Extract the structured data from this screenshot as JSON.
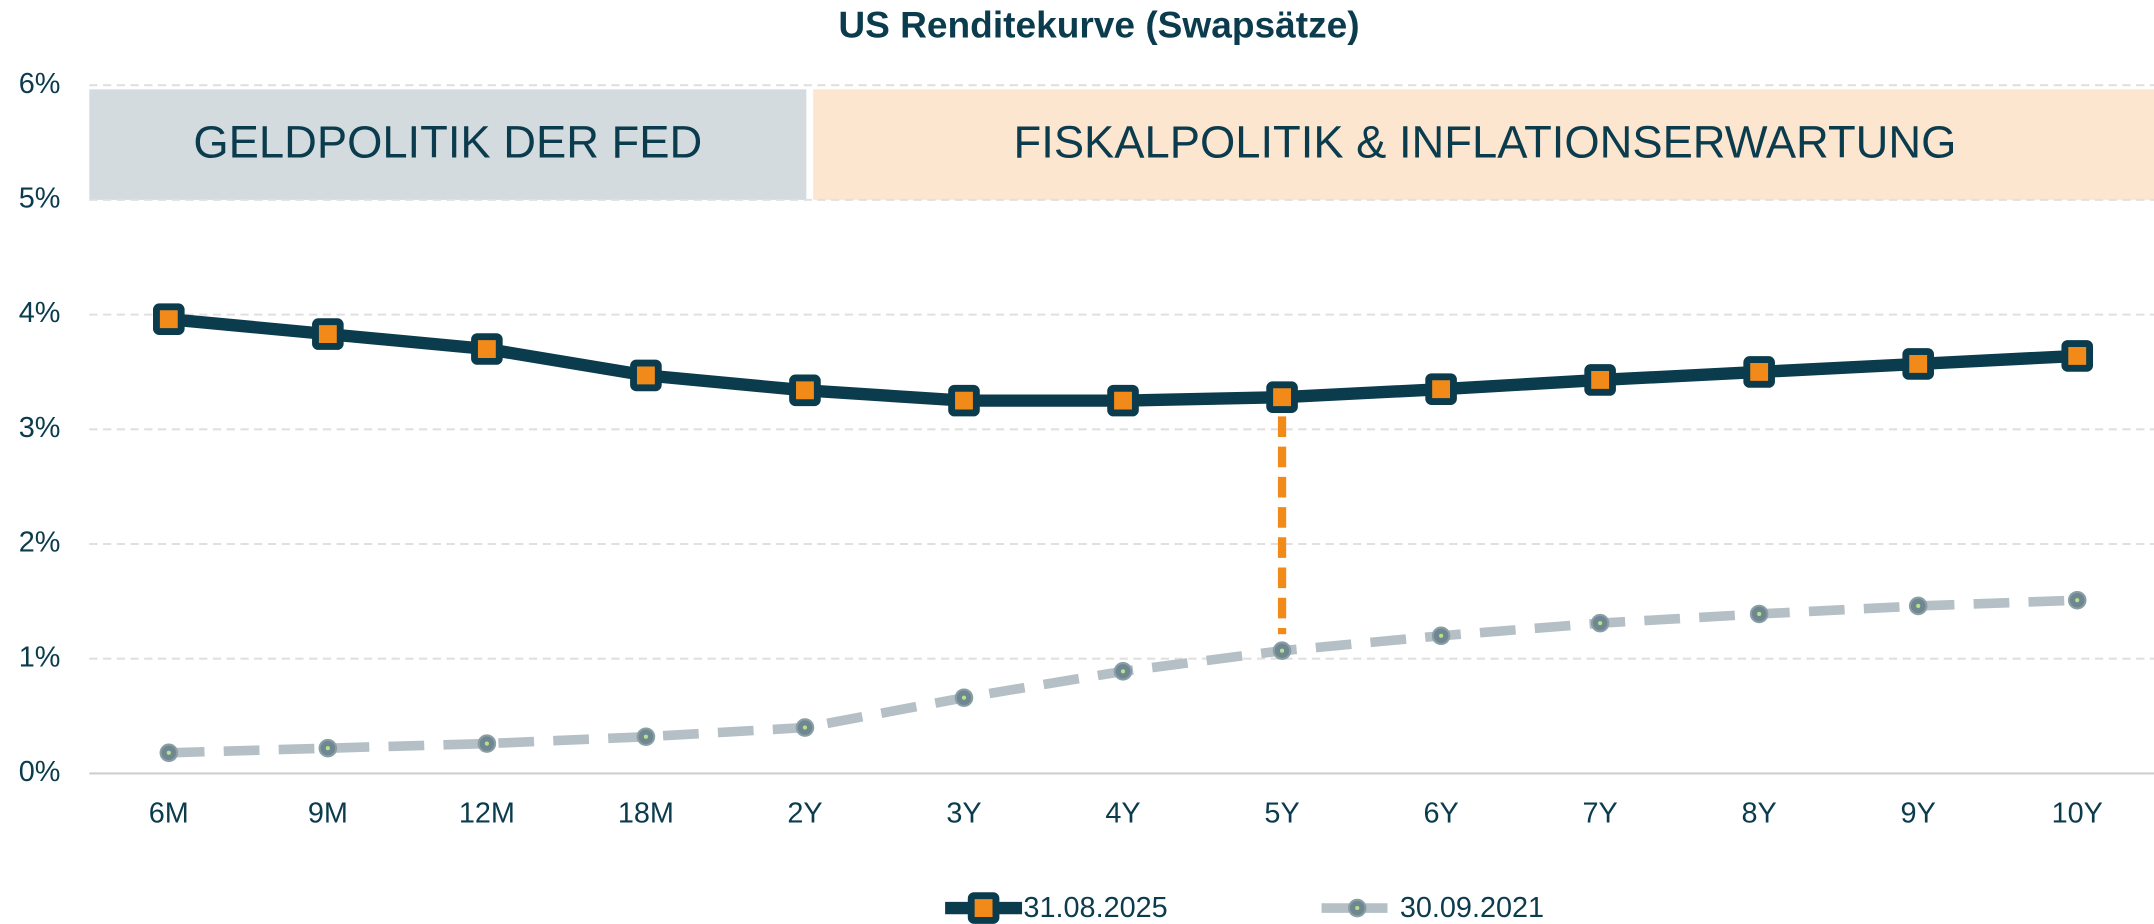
{
  "chart_data": {
    "type": "line",
    "title": "US Renditekurve (Swapsätze)",
    "categories": [
      "6M",
      "9M",
      "12M",
      "18M",
      "2Y",
      "3Y",
      "4Y",
      "5Y",
      "6Y",
      "7Y",
      "8Y",
      "9Y",
      "10Y"
    ],
    "series": [
      {
        "name": "31.08.2025",
        "color": "#0b3c4d",
        "marker_color": "#f28a1a",
        "values": [
          3.96,
          3.83,
          3.7,
          3.47,
          3.34,
          3.25,
          3.25,
          3.28,
          3.35,
          3.43,
          3.5,
          3.57,
          3.64
        ]
      },
      {
        "name": "30.09.2021",
        "color": "#b4c0c6",
        "marker_color": "#6e8791",
        "values": [
          0.18,
          0.22,
          0.26,
          0.32,
          0.4,
          0.66,
          0.89,
          1.07,
          1.2,
          1.31,
          1.39,
          1.46,
          1.51
        ]
      }
    ],
    "ylim": [
      0,
      6
    ],
    "yticks": [
      {
        "value": 0,
        "label": "0%"
      },
      {
        "value": 1,
        "label": "1%"
      },
      {
        "value": 2,
        "label": "2%"
      },
      {
        "value": 3,
        "label": "3%"
      },
      {
        "value": 4,
        "label": "4%"
      },
      {
        "value": 5,
        "label": "5%"
      },
      {
        "value": 6,
        "label": "6%"
      }
    ],
    "grid": true,
    "legend": "bottom",
    "annotations": [
      {
        "text": "GELDPOLITIK DER FED",
        "color": "#d3dbdf"
      },
      {
        "text": "FISKALPOLITIK & INFLATIONSERWARTUNG",
        "color": "#fde6d0"
      }
    ],
    "highlight_color": "#f28a1a"
  }
}
